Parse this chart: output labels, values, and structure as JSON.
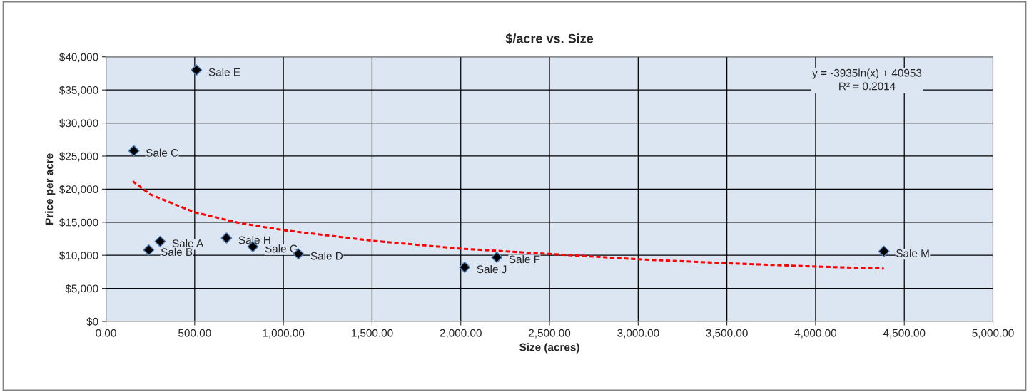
{
  "chart_data": {
    "type": "scatter",
    "title": "$/acre vs. Size",
    "xlabel": "Size (acres)",
    "ylabel": "Price per acre",
    "xlim": [
      0,
      5000
    ],
    "ylim": [
      0,
      40000
    ],
    "xticks": [
      {
        "value": 0,
        "label": "0.00"
      },
      {
        "value": 500,
        "label": "500.00"
      },
      {
        "value": 1000,
        "label": "1,000.00"
      },
      {
        "value": 1500,
        "label": "1,500.00"
      },
      {
        "value": 2000,
        "label": "2,000.00"
      },
      {
        "value": 2500,
        "label": "2,500.00"
      },
      {
        "value": 3000,
        "label": "3,000.00"
      },
      {
        "value": 3500,
        "label": "3,500.00"
      },
      {
        "value": 4000,
        "label": "4,000.00"
      },
      {
        "value": 4500,
        "label": "4,500.00"
      },
      {
        "value": 5000,
        "label": "5,000.00"
      }
    ],
    "yticks": [
      {
        "value": 0,
        "label": "$0"
      },
      {
        "value": 5000,
        "label": "$5,000"
      },
      {
        "value": 10000,
        "label": "$10,000"
      },
      {
        "value": 15000,
        "label": "$15,000"
      },
      {
        "value": 20000,
        "label": "$20,000"
      },
      {
        "value": 25000,
        "label": "$25,000"
      },
      {
        "value": 30000,
        "label": "$30,000"
      },
      {
        "value": 35000,
        "label": "$35,000"
      },
      {
        "value": 40000,
        "label": "$40,000"
      }
    ],
    "grid": true,
    "legend": false,
    "series": [
      {
        "type": "scatter",
        "color": "#000000",
        "marker": "diamond",
        "x": [
          510,
          157,
          241,
          305,
          679,
          828,
          1085,
          2022,
          2203,
          4385
        ],
        "values": [
          38000,
          25800,
          10800,
          12100,
          12600,
          11300,
          10200,
          8200,
          9700,
          10600
        ]
      },
      {
        "type": "line",
        "color": "#ff0000",
        "line_style": "dashed",
        "marker": "none",
        "x": [
          150,
          250,
          500,
          750,
          1000,
          1500,
          2000,
          2500,
          3000,
          3500,
          4000,
          4385
        ],
        "values": [
          21200,
          19200,
          16500,
          14900,
          13800,
          12200,
          11000,
          10200,
          9400,
          8800,
          8300,
          8000
        ]
      }
    ],
    "annotations": [
      {
        "text": "Sale E",
        "x": 510,
        "y": 38000
      },
      {
        "text": "Sale C",
        "x": 157,
        "y": 25800
      },
      {
        "text": "Sale B",
        "x": 241,
        "y": 10800
      },
      {
        "text": "Sale A",
        "x": 305,
        "y": 12100
      },
      {
        "text": "Sale H",
        "x": 679,
        "y": 12600
      },
      {
        "text": "Sale G",
        "x": 828,
        "y": 11300
      },
      {
        "text": "Sale D",
        "x": 1085,
        "y": 10200
      },
      {
        "text": "Sale J",
        "x": 2022,
        "y": 8200
      },
      {
        "text": "Sale F",
        "x": 2203,
        "y": 9700
      },
      {
        "text": "Sale M",
        "x": 4385,
        "y": 10600
      },
      "y = -3935ln(x) + 40953\nR² = 0.2014"
    ]
  }
}
